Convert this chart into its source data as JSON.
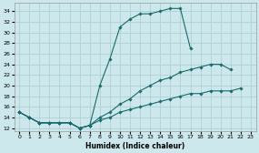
{
  "xlabel": "Humidex (Indice chaleur)",
  "background_color": "#cce8ec",
  "grid_color": "#b0d0d4",
  "line_color": "#1a6b6b",
  "xlim": [
    -0.5,
    23.5
  ],
  "ylim": [
    11.5,
    35.5
  ],
  "yticks": [
    12,
    14,
    16,
    18,
    20,
    22,
    24,
    26,
    28,
    30,
    32,
    34
  ],
  "xticks": [
    0,
    1,
    2,
    3,
    4,
    5,
    6,
    7,
    8,
    9,
    10,
    11,
    12,
    13,
    14,
    15,
    16,
    17,
    18,
    19,
    20,
    21,
    22,
    23
  ],
  "series": [
    {
      "x": [
        0,
        1,
        2,
        3,
        4,
        5,
        6,
        7,
        8,
        9,
        10,
        11,
        12,
        13,
        14,
        15,
        16,
        17,
        18,
        19,
        20,
        21
      ],
      "y": [
        15,
        14,
        13,
        13,
        13,
        13,
        12,
        12.5,
        20,
        25,
        31,
        32.5,
        33.5,
        33.5,
        34,
        34.5,
        34.5,
        27,
        null,
        null,
        null,
        null
      ]
    },
    {
      "x": [
        0,
        1,
        2,
        3,
        4,
        5,
        6,
        7,
        8,
        9,
        10,
        11,
        12,
        13,
        14,
        15,
        16,
        17,
        18,
        19,
        20,
        21,
        22,
        23
      ],
      "y": [
        15,
        14,
        13,
        13,
        13,
        13,
        12,
        12.5,
        14,
        15,
        16.5,
        17.5,
        19,
        20,
        21,
        21.5,
        22.5,
        23,
        23.5,
        24,
        24,
        23,
        null,
        null
      ]
    },
    {
      "x": [
        0,
        1,
        2,
        3,
        4,
        5,
        6,
        7,
        8,
        9,
        10,
        11,
        12,
        13,
        14,
        15,
        16,
        17,
        18,
        19,
        20,
        21,
        22,
        23
      ],
      "y": [
        15,
        14,
        13,
        13,
        13,
        13,
        12,
        12.5,
        13.5,
        14,
        15,
        15.5,
        16,
        16.5,
        17,
        17.5,
        18,
        18.5,
        18.5,
        19,
        19,
        19,
        19.5,
        null
      ]
    }
  ]
}
